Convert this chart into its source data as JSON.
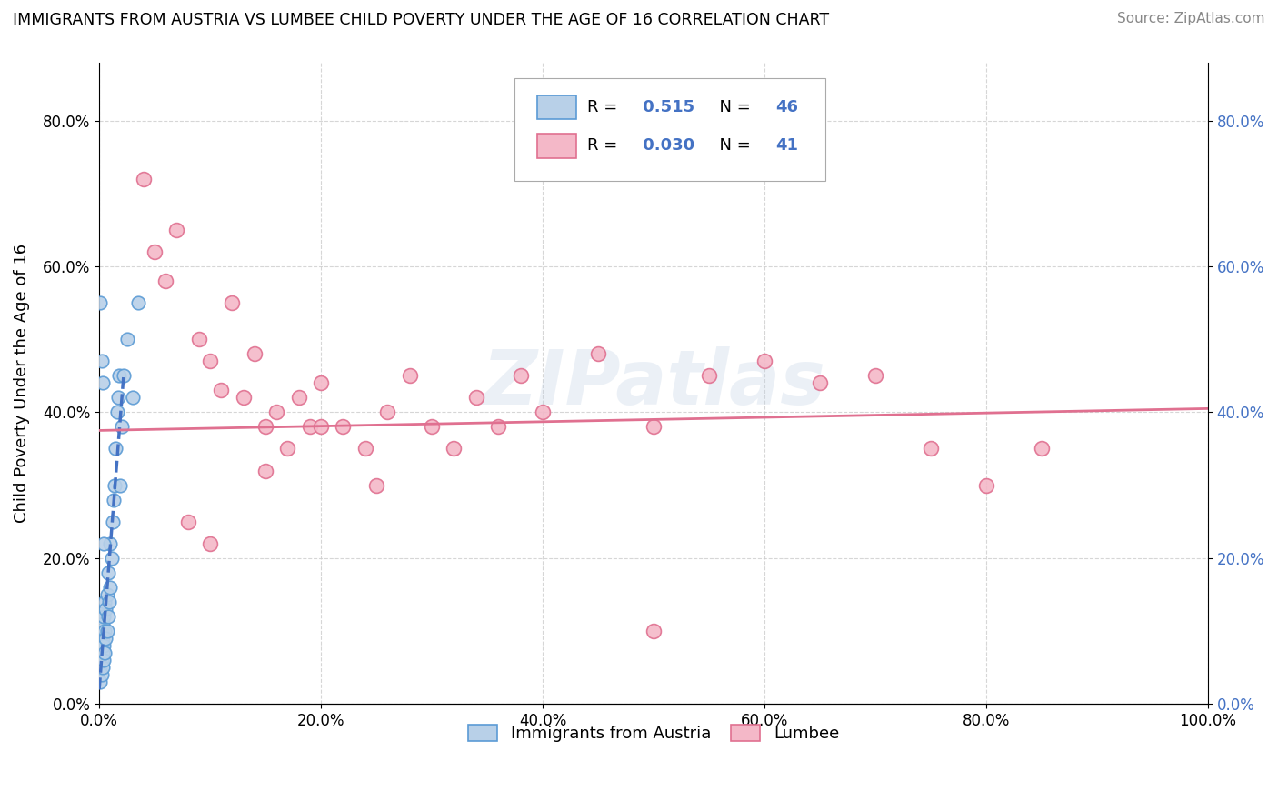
{
  "title": "IMMIGRANTS FROM AUSTRIA VS LUMBEE CHILD POVERTY UNDER THE AGE OF 16 CORRELATION CHART",
  "source": "Source: ZipAtlas.com",
  "ylabel": "Child Poverty Under the Age of 16",
  "legend_labels": [
    "Immigrants from Austria",
    "Lumbee"
  ],
  "legend_R": [
    0.515,
    0.03
  ],
  "legend_N": [
    46,
    41
  ],
  "blue_color": "#b8d0e8",
  "blue_edge": "#5b9bd5",
  "pink_color": "#f4b8c8",
  "pink_edge": "#e07090",
  "trend_blue": "#4472c4",
  "trend_pink": "#e07090",
  "watermark": "ZIPatlas",
  "xlim": [
    0.0,
    1.0
  ],
  "ylim": [
    0.0,
    0.88
  ],
  "xticks": [
    0.0,
    0.2,
    0.4,
    0.6,
    0.8,
    1.0
  ],
  "yticks": [
    0.0,
    0.2,
    0.4,
    0.6,
    0.8
  ],
  "xtick_labels": [
    "0.0%",
    "20.0%",
    "40.0%",
    "60.0%",
    "80.0%",
    "100.0%"
  ],
  "ytick_labels": [
    "0.0%",
    "20.0%",
    "40.0%",
    "60.0%",
    "80.0%"
  ],
  "blue_scatter_x": [
    0.001,
    0.001,
    0.001,
    0.001,
    0.002,
    0.002,
    0.002,
    0.002,
    0.002,
    0.003,
    0.003,
    0.003,
    0.003,
    0.004,
    0.004,
    0.004,
    0.005,
    0.005,
    0.005,
    0.006,
    0.006,
    0.007,
    0.007,
    0.008,
    0.008,
    0.009,
    0.01,
    0.01,
    0.011,
    0.012,
    0.013,
    0.014,
    0.015,
    0.016,
    0.017,
    0.018,
    0.019,
    0.02,
    0.022,
    0.025,
    0.03,
    0.035,
    0.001,
    0.002,
    0.003,
    0.004
  ],
  "blue_scatter_y": [
    0.03,
    0.05,
    0.07,
    0.09,
    0.04,
    0.06,
    0.08,
    0.1,
    0.12,
    0.05,
    0.07,
    0.09,
    0.11,
    0.06,
    0.08,
    0.12,
    0.07,
    0.1,
    0.14,
    0.09,
    0.13,
    0.1,
    0.15,
    0.12,
    0.18,
    0.14,
    0.16,
    0.22,
    0.2,
    0.25,
    0.28,
    0.3,
    0.35,
    0.4,
    0.42,
    0.45,
    0.3,
    0.38,
    0.45,
    0.5,
    0.42,
    0.55,
    0.55,
    0.47,
    0.44,
    0.22
  ],
  "pink_scatter_x": [
    0.04,
    0.05,
    0.06,
    0.07,
    0.09,
    0.1,
    0.11,
    0.12,
    0.13,
    0.14,
    0.15,
    0.16,
    0.17,
    0.18,
    0.19,
    0.2,
    0.22,
    0.24,
    0.26,
    0.28,
    0.3,
    0.32,
    0.34,
    0.36,
    0.38,
    0.4,
    0.45,
    0.5,
    0.55,
    0.6,
    0.65,
    0.7,
    0.75,
    0.8,
    0.85,
    0.5,
    0.15,
    0.2,
    0.25,
    0.08,
    0.1
  ],
  "pink_scatter_y": [
    0.72,
    0.62,
    0.58,
    0.65,
    0.5,
    0.47,
    0.43,
    0.55,
    0.42,
    0.48,
    0.38,
    0.4,
    0.35,
    0.42,
    0.38,
    0.44,
    0.38,
    0.35,
    0.4,
    0.45,
    0.38,
    0.35,
    0.42,
    0.38,
    0.45,
    0.4,
    0.48,
    0.38,
    0.45,
    0.47,
    0.44,
    0.45,
    0.35,
    0.3,
    0.35,
    0.1,
    0.32,
    0.38,
    0.3,
    0.25,
    0.22
  ],
  "blue_trend_x": [
    0.0,
    0.022
  ],
  "blue_trend_y_start": 0.02,
  "blue_trend_y_end": 0.45,
  "pink_trend_x": [
    0.0,
    1.0
  ],
  "pink_trend_y_start": 0.375,
  "pink_trend_y_end": 0.405
}
